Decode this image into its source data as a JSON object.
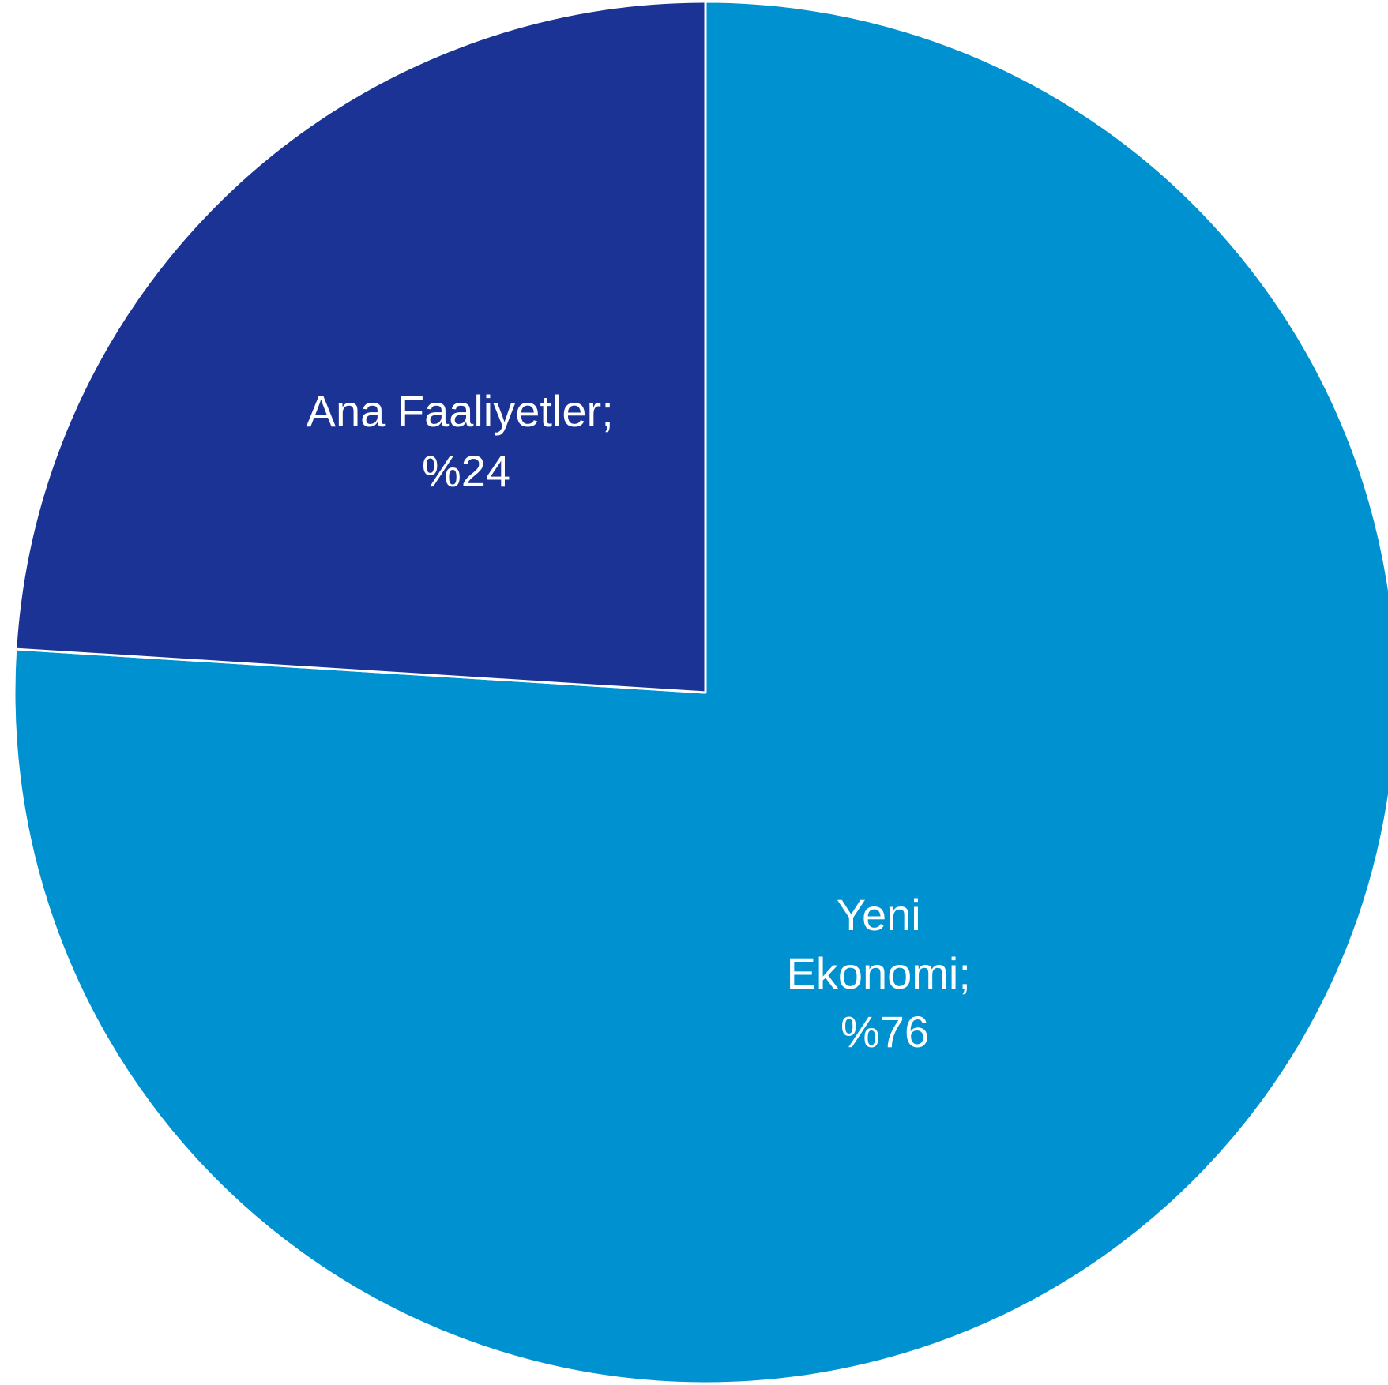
{
  "chart_data": {
    "type": "pie",
    "start": "12 o'clock",
    "direction": "clockwise",
    "slices": [
      {
        "name": "Yeni Ekonomi",
        "value": 76,
        "label_lines": [
          "Yeni",
          "Ekonomi;",
          "%76"
        ],
        "color": "#0092d0"
      },
      {
        "name": "Ana Faaliyetler",
        "value": 24,
        "label_lines": [
          "Ana Faaliyetler;",
          "%24"
        ],
        "color": "#1a3394"
      }
    ],
    "separator_color": "#ffffff"
  }
}
